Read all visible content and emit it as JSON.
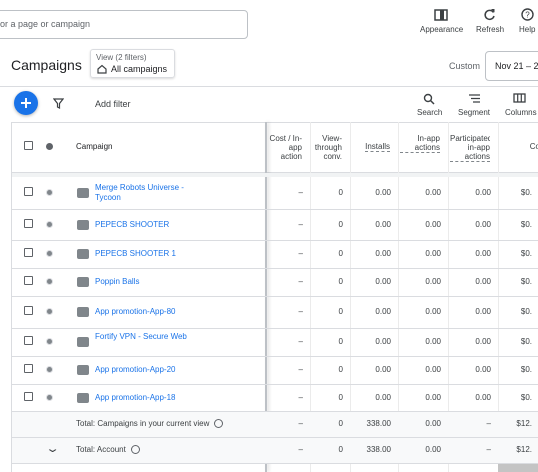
{
  "top_bar": {
    "search_placeholder": "or a page or campaign",
    "actions": [
      "Appearance",
      "Refresh",
      "Help"
    ]
  },
  "header": {
    "title": "Campaigns",
    "view_label": "View (2 filters)",
    "view_value": "All campaigns",
    "date_label": "Custom",
    "date_value": "Nov 21 – 2"
  },
  "toolbar": {
    "add_filter": "Add filter",
    "actions": [
      "Search",
      "Segment",
      "Columns"
    ]
  },
  "table": {
    "columns": [
      "Campaign",
      "Cost / In-app action",
      "View-through conv.",
      "Installs",
      "In-app actions",
      "Participated in-app actions",
      "Co"
    ],
    "rows": [
      [
        "Merge Robots Universe - Tycoon",
        "–",
        "0",
        "0.00",
        "0.00",
        "0.00",
        "$0."
      ],
      [
        "PEPECB SHOOTER",
        "–",
        "0",
        "0.00",
        "0.00",
        "0.00",
        "$0."
      ],
      [
        "PEPECB SHOOTER 1",
        "–",
        "0",
        "0.00",
        "0.00",
        "0.00",
        "$0."
      ],
      [
        "Poppin Balls",
        "–",
        "0",
        "0.00",
        "0.00",
        "0.00",
        "$0."
      ],
      [
        "App promotion-App-80",
        "–",
        "0",
        "0.00",
        "0.00",
        "0.00",
        "$0."
      ],
      [
        "Fortify VPN - Secure Web",
        "–",
        "0",
        "0.00",
        "0.00",
        "0.00",
        "$0."
      ],
      [
        "App promotion-App-20",
        "–",
        "0",
        "0.00",
        "0.00",
        "0.00",
        "$0."
      ],
      [
        "App promotion-App-18",
        "–",
        "0",
        "0.00",
        "0.00",
        "0.00",
        "$0."
      ]
    ],
    "totals": [
      [
        "Total: Campaigns in your current view",
        "–",
        "0",
        "338.00",
        "0.00",
        "–",
        "$12."
      ],
      [
        "Total: Account",
        "–",
        "0",
        "338.00",
        "0.00",
        "–",
        "$12."
      ]
    ]
  }
}
